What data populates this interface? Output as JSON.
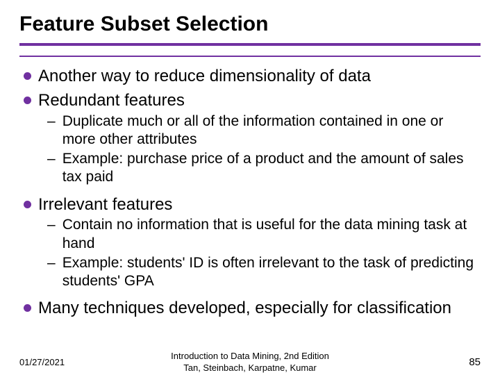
{
  "title": "Feature Subset Selection",
  "accent_color": "#7030a0",
  "bullets": {
    "b1": "Another way to reduce dimensionality of data",
    "b2": "Redundant features",
    "b2_sub1": "Duplicate much or all of the information contained in one or more other attributes",
    "b2_sub2": "Example: purchase price of a product and the amount of sales tax paid",
    "b3": "Irrelevant features",
    "b3_sub1": "Contain no information that is useful for the data mining task at hand",
    "b3_sub2": "Example: students' ID is often irrelevant to the task of predicting students' GPA",
    "b4": "Many techniques developed, especially for classification"
  },
  "footer": {
    "date": "01/27/2021",
    "center_line1": "Introduction to Data Mining, 2nd Edition",
    "center_line2": "Tan, Steinbach, Karpatne, Kumar",
    "page": "85"
  }
}
